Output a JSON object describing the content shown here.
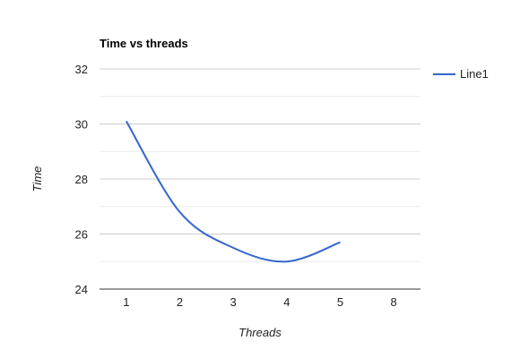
{
  "chart_data": {
    "type": "line",
    "title": "Time vs threads",
    "xlabel": "Threads",
    "ylabel": "Time",
    "categories": [
      "1",
      "2",
      "3",
      "4",
      "5",
      "8"
    ],
    "series": [
      {
        "name": "Line1",
        "values": [
          30.1,
          26.8,
          25.5,
          25.0,
          25.7,
          null
        ],
        "color": "#3366cc"
      }
    ],
    "ylim": [
      24,
      32
    ],
    "yticks": [
      24,
      26,
      28,
      30,
      32
    ],
    "grid": true,
    "legend_position": "right",
    "smooth": true
  }
}
